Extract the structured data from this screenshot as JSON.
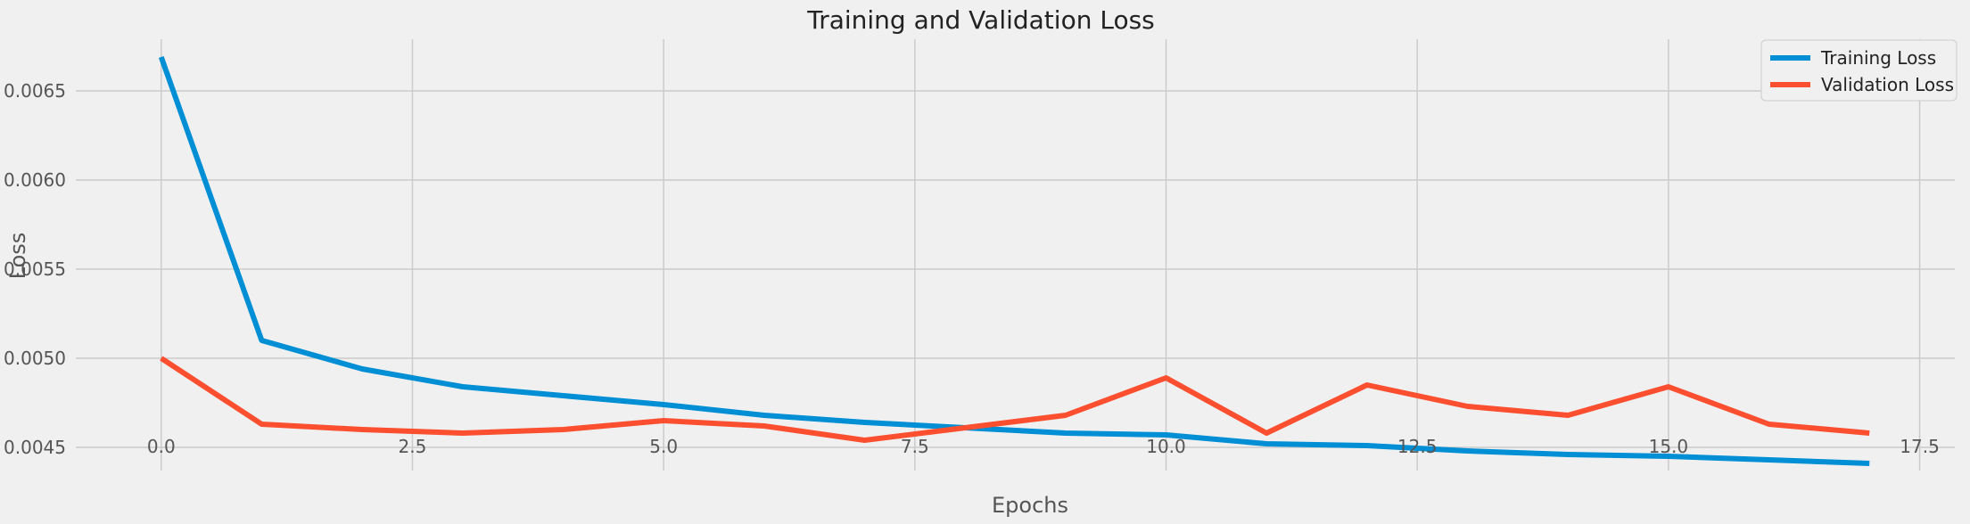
{
  "chart_data": {
    "type": "line",
    "title": "Training and Validation Loss",
    "xlabel": "Epochs",
    "ylabel": "Loss",
    "xlim": [
      -0.85,
      17.85
    ],
    "ylim": [
      0.00437,
      0.00679
    ],
    "x_ticks": [
      0.0,
      2.5,
      5.0,
      7.5,
      10.0,
      12.5,
      15.0,
      17.5
    ],
    "x_tick_labels": [
      "0.0",
      "2.5",
      "5.0",
      "7.5",
      "10.0",
      "12.5",
      "15.0",
      "17.5"
    ],
    "y_ticks": [
      0.0045,
      0.005,
      0.0055,
      0.006,
      0.0065
    ],
    "y_tick_labels": [
      "0.0045",
      "0.0050",
      "0.0055",
      "0.0060",
      "0.0065"
    ],
    "grid": true,
    "legend_position": "top-right",
    "x": [
      0,
      1,
      2,
      3,
      4,
      5,
      6,
      7,
      8,
      9,
      10,
      11,
      12,
      13,
      14,
      15,
      16,
      17
    ],
    "series": [
      {
        "name": "Training Loss",
        "color": "#008fd5",
        "values": [
          0.00669,
          0.0051,
          0.00494,
          0.00484,
          0.00479,
          0.00474,
          0.00468,
          0.00464,
          0.00461,
          0.00458,
          0.00457,
          0.00452,
          0.00451,
          0.00448,
          0.00446,
          0.00445,
          0.00443,
          0.00441
        ]
      },
      {
        "name": "Validation Loss",
        "color": "#fc4f30",
        "values": [
          0.005,
          0.00463,
          0.0046,
          0.00458,
          0.0046,
          0.00465,
          0.00462,
          0.00454,
          0.00461,
          0.00468,
          0.00489,
          0.00458,
          0.00485,
          0.00473,
          0.00468,
          0.00484,
          0.00463,
          0.00458
        ]
      }
    ]
  }
}
